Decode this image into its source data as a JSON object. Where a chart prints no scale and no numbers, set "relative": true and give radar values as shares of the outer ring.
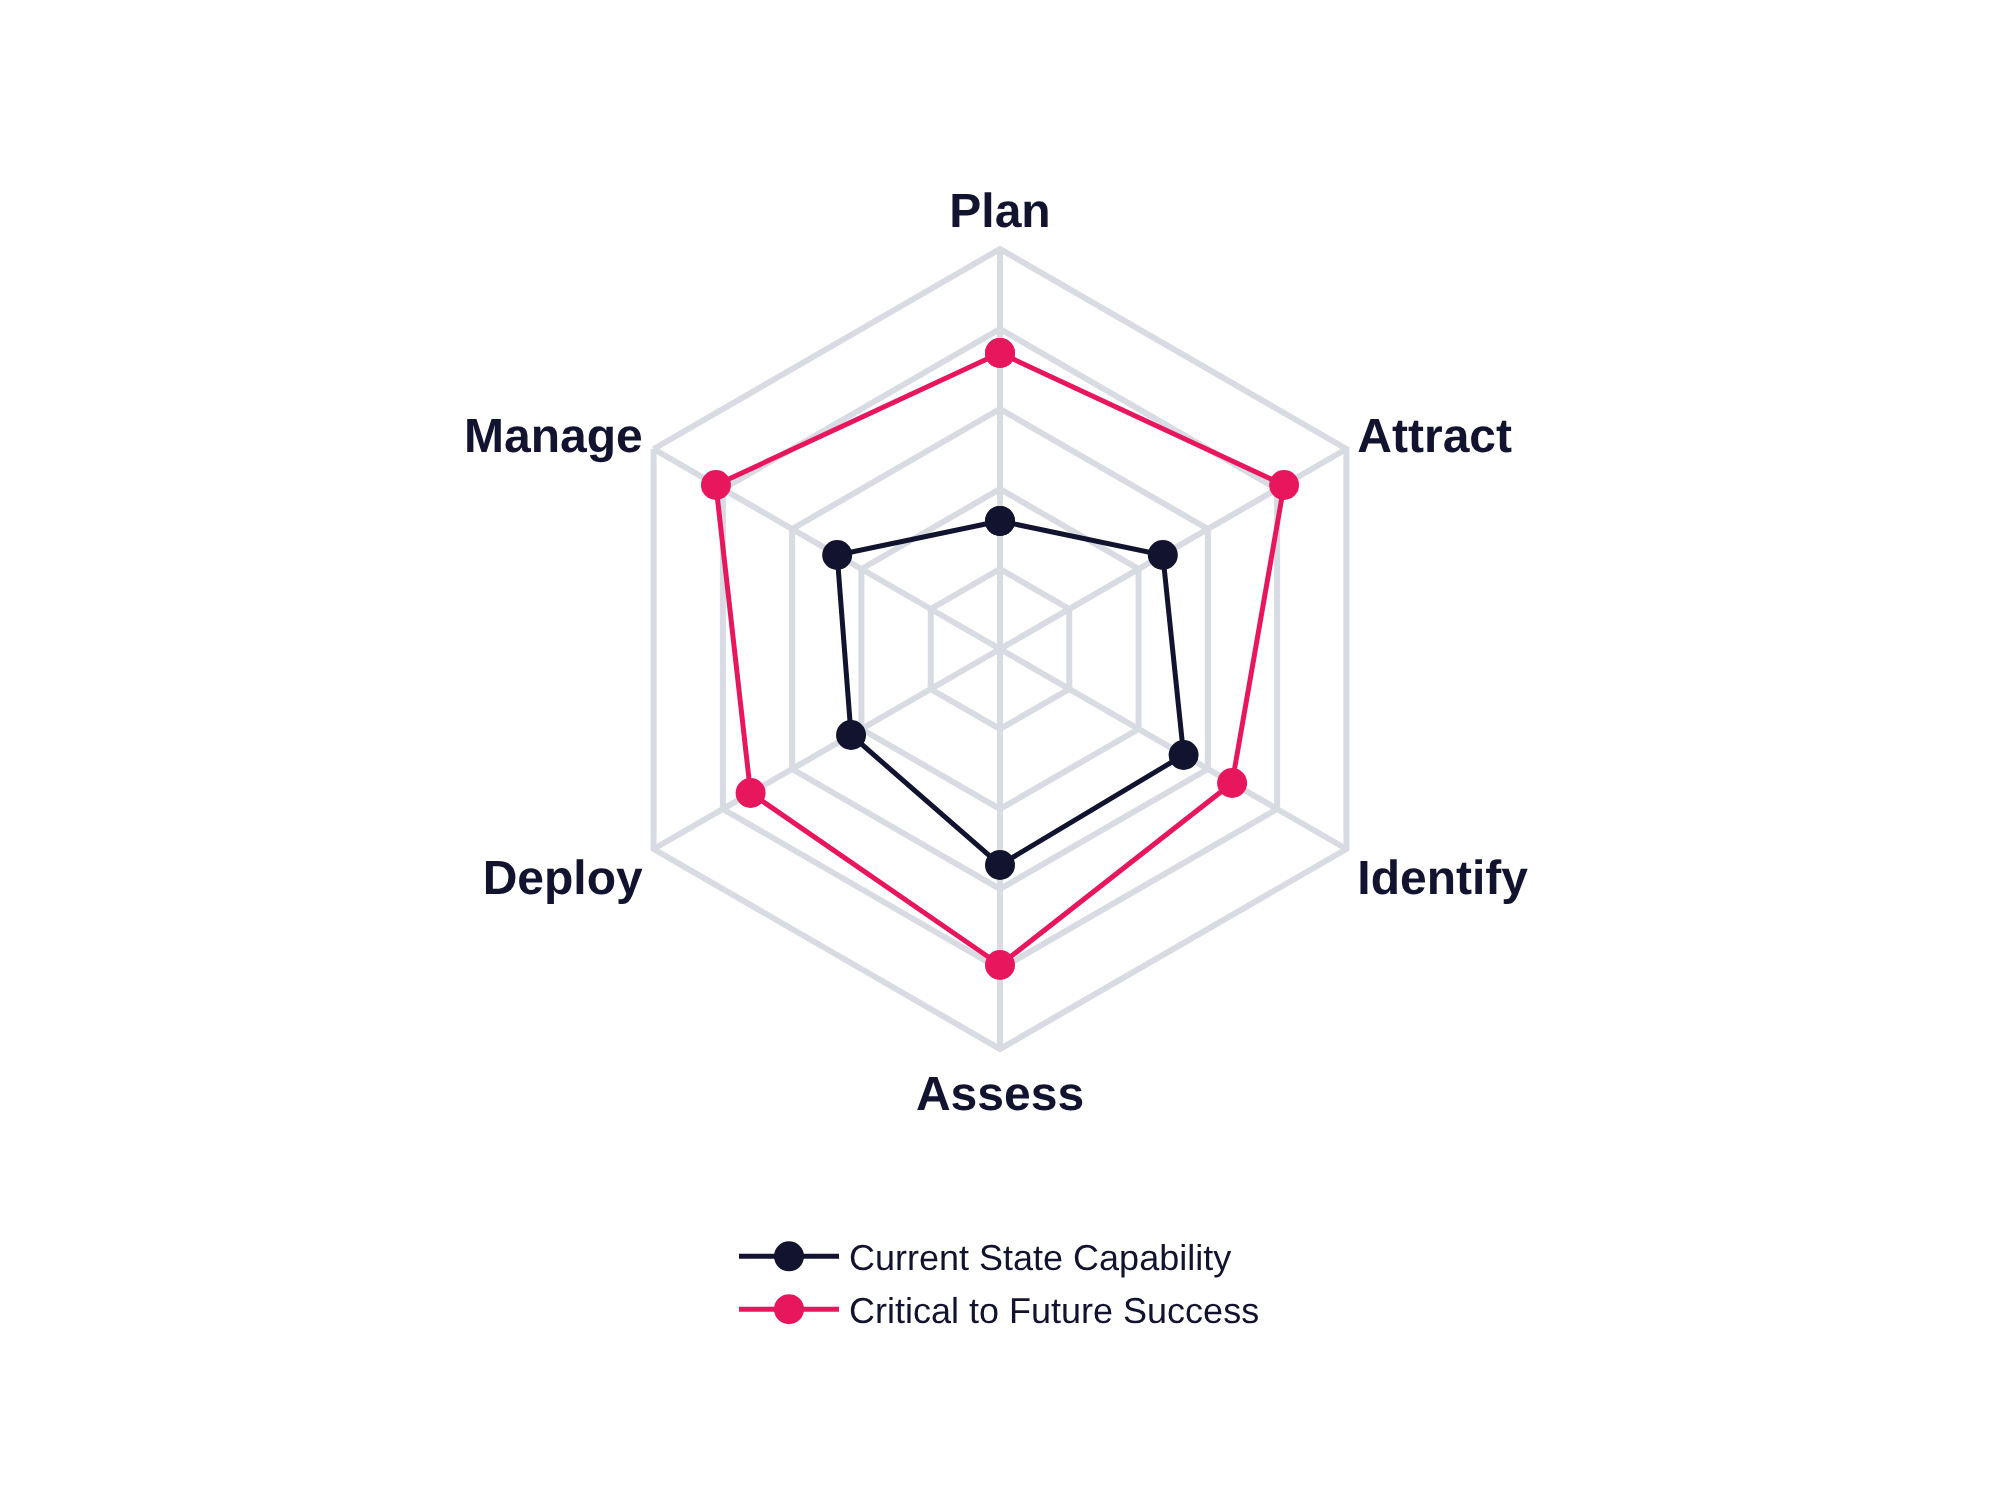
{
  "chart_data": {
    "type": "radar",
    "relative": true,
    "categories": [
      "Plan",
      "Attract",
      "Identify",
      "Assess",
      "Deploy",
      "Manage"
    ],
    "series": [
      {
        "name": "Current State Capability",
        "color": "#12132e",
        "values": [
          0.32,
          0.47,
          0.53,
          0.54,
          0.43,
          0.47
        ]
      },
      {
        "name": "Critical to Future Success",
        "color": "#e8175d",
        "values": [
          0.74,
          0.82,
          0.67,
          0.79,
          0.72,
          0.82
        ]
      }
    ],
    "marker": "circle",
    "line_style": "solid",
    "legend": "bottom",
    "grid": true
  }
}
